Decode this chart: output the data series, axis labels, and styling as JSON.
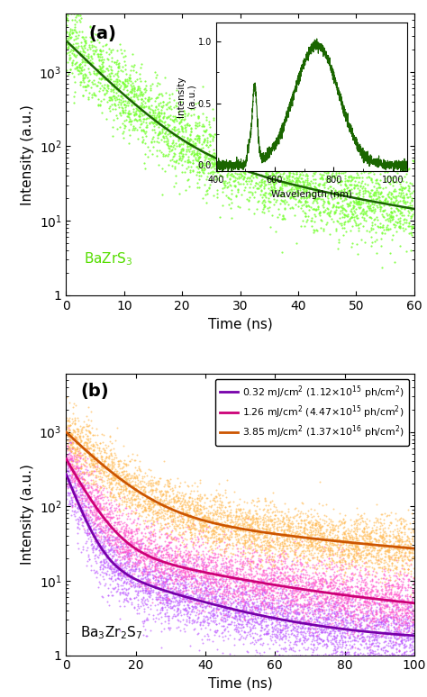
{
  "panel_a": {
    "label": "(a)",
    "scatter_color": "#77ff33",
    "fit_color": "#1a6600",
    "fit_A1": 2500,
    "fit_tau1": 5.5,
    "fit_A2": 120,
    "fit_tau2": 25.0,
    "fit_floor": 3.5,
    "xlim": [
      0,
      60
    ],
    "ylim": [
      1.0,
      6000
    ],
    "yticks": [
      1,
      10,
      100,
      1000
    ],
    "xlabel": "Time (ns)",
    "ylabel": "Intensity (a.u.)",
    "compound": "BaZrS$_3$",
    "compound_color": "#55dd00",
    "inset": {
      "xlabel": "Wavelength (nm)",
      "ylabel": "Intensity\n(a.u.)",
      "xlim": [
        400,
        1050
      ],
      "ylim": [
        -0.05,
        1.15
      ],
      "color": "#1a6600",
      "xticks": [
        400,
        600,
        800,
        1000
      ],
      "yticks": [
        0.0,
        0.5,
        1.0
      ]
    }
  },
  "panel_b": {
    "label": "(b)",
    "xlim": [
      0,
      100
    ],
    "ylim": [
      1.0,
      6000
    ],
    "yticks": [
      1,
      10,
      100,
      1000
    ],
    "xlabel": "Time (ns)",
    "ylabel": "Intensity (a.u.)",
    "compound": "Ba$_3$Zr$_2$S$_7$",
    "series": [
      {
        "label": "0.32 mJ/cm$^2$ (1.12×10$^{15}$ ph/cm$^2$)",
        "scatter_color": "#bb55ff",
        "fit_color": "#7700aa",
        "A1": 250,
        "tau1": 3.5,
        "A2": 18,
        "tau2": 25.0,
        "floor": 1.5,
        "scatter_sigma": 0.55
      },
      {
        "label": "1.26 mJ/cm$^2$ (4.47×10$^{15}$ ph/cm$^2$)",
        "scatter_color": "#ff55cc",
        "fit_color": "#cc0077",
        "A1": 400,
        "tau1": 5.0,
        "A2": 28,
        "tau2": 38.0,
        "floor": 3.0,
        "scatter_sigma": 0.5
      },
      {
        "label": "3.85 mJ/cm$^2$ (1.37×10$^{16}$ ph/cm$^2$)",
        "scatter_color": "#ffbb55",
        "fit_color": "#cc5500",
        "A1": 900,
        "tau1": 9.0,
        "A2": 80,
        "tau2": 60.0,
        "floor": 12.0,
        "scatter_sigma": 0.45
      }
    ]
  }
}
